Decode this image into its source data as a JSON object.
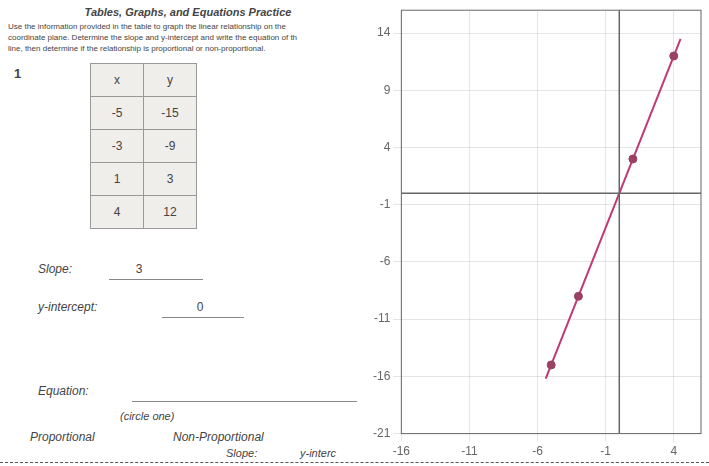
{
  "chart_data": {
    "type": "scatter",
    "title": "Tables, Graphs, and Equations Practice",
    "subtitle": [
      "Use the information provided in the table to graph the linear relationship on the",
      "coordinate plane. Determine the slope and y-intercept and write the equation of th",
      "line, then determine if the relationship is proportional or non-proportional."
    ],
    "annotations": [
      "1",
      "Slope:",
      "3",
      "y-intercept:",
      "0",
      "Equation:",
      "(circle one)",
      "Proportional",
      "Non-Proportional",
      "Slope:",
      "y-interc"
    ],
    "table": {
      "headers": [
        "x",
        "y"
      ],
      "rows": [
        [
          -5,
          -15
        ],
        [
          -3,
          -9
        ],
        [
          1,
          3
        ],
        [
          4,
          12
        ]
      ]
    },
    "series": [
      {
        "type": "line",
        "color": "#c03878",
        "x": [
          -5.4,
          4.5
        ],
        "values": [
          -16.2,
          13.5
        ]
      },
      {
        "type": "scatter",
        "color": "#9a4060",
        "x": [
          -5,
          -3,
          1,
          4
        ],
        "values": [
          -15,
          -9,
          3,
          12
        ]
      }
    ],
    "xlim": [
      -16,
      6
    ],
    "xticks": [
      -16,
      -11,
      -6,
      -1,
      4
    ],
    "ylim": [
      -21,
      16
    ],
    "yticks": [
      -21,
      -16,
      -11,
      -6,
      -1,
      4,
      9,
      14
    ],
    "grid": true
  }
}
